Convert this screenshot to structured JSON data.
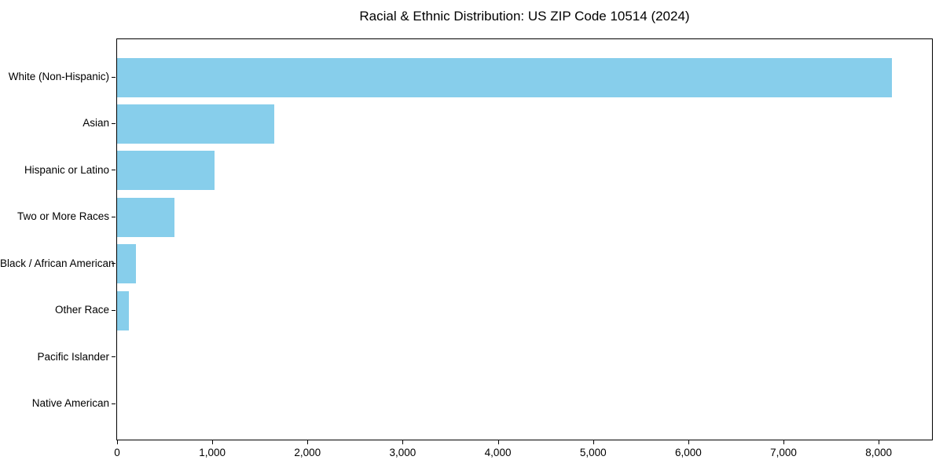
{
  "chart_data": {
    "type": "bar",
    "orientation": "horizontal",
    "title": "Racial & Ethnic Distribution: US ZIP Code 10514 (2024)",
    "categories": [
      "White (Non-Hispanic)",
      "Asian",
      "Hispanic or Latino",
      "Two or More Races",
      "Black / African American",
      "Other Race",
      "Pacific Islander",
      "Native American"
    ],
    "values": [
      8140,
      1655,
      1025,
      600,
      195,
      120,
      0,
      0
    ],
    "xlabel": "",
    "ylabel": "",
    "xlim": [
      0,
      8560
    ],
    "x_ticks": [
      0,
      1000,
      2000,
      3000,
      4000,
      5000,
      6000,
      7000,
      8000
    ],
    "x_tick_labels": [
      "0",
      "1,000",
      "2,000",
      "3,000",
      "4,000",
      "5,000",
      "6,000",
      "7,000",
      "8,000"
    ],
    "bar_color": "#87CEEB",
    "axis_color": "#000000",
    "text_color": "#000000",
    "background_color": "#ffffff",
    "grid": false,
    "legend": "none"
  }
}
